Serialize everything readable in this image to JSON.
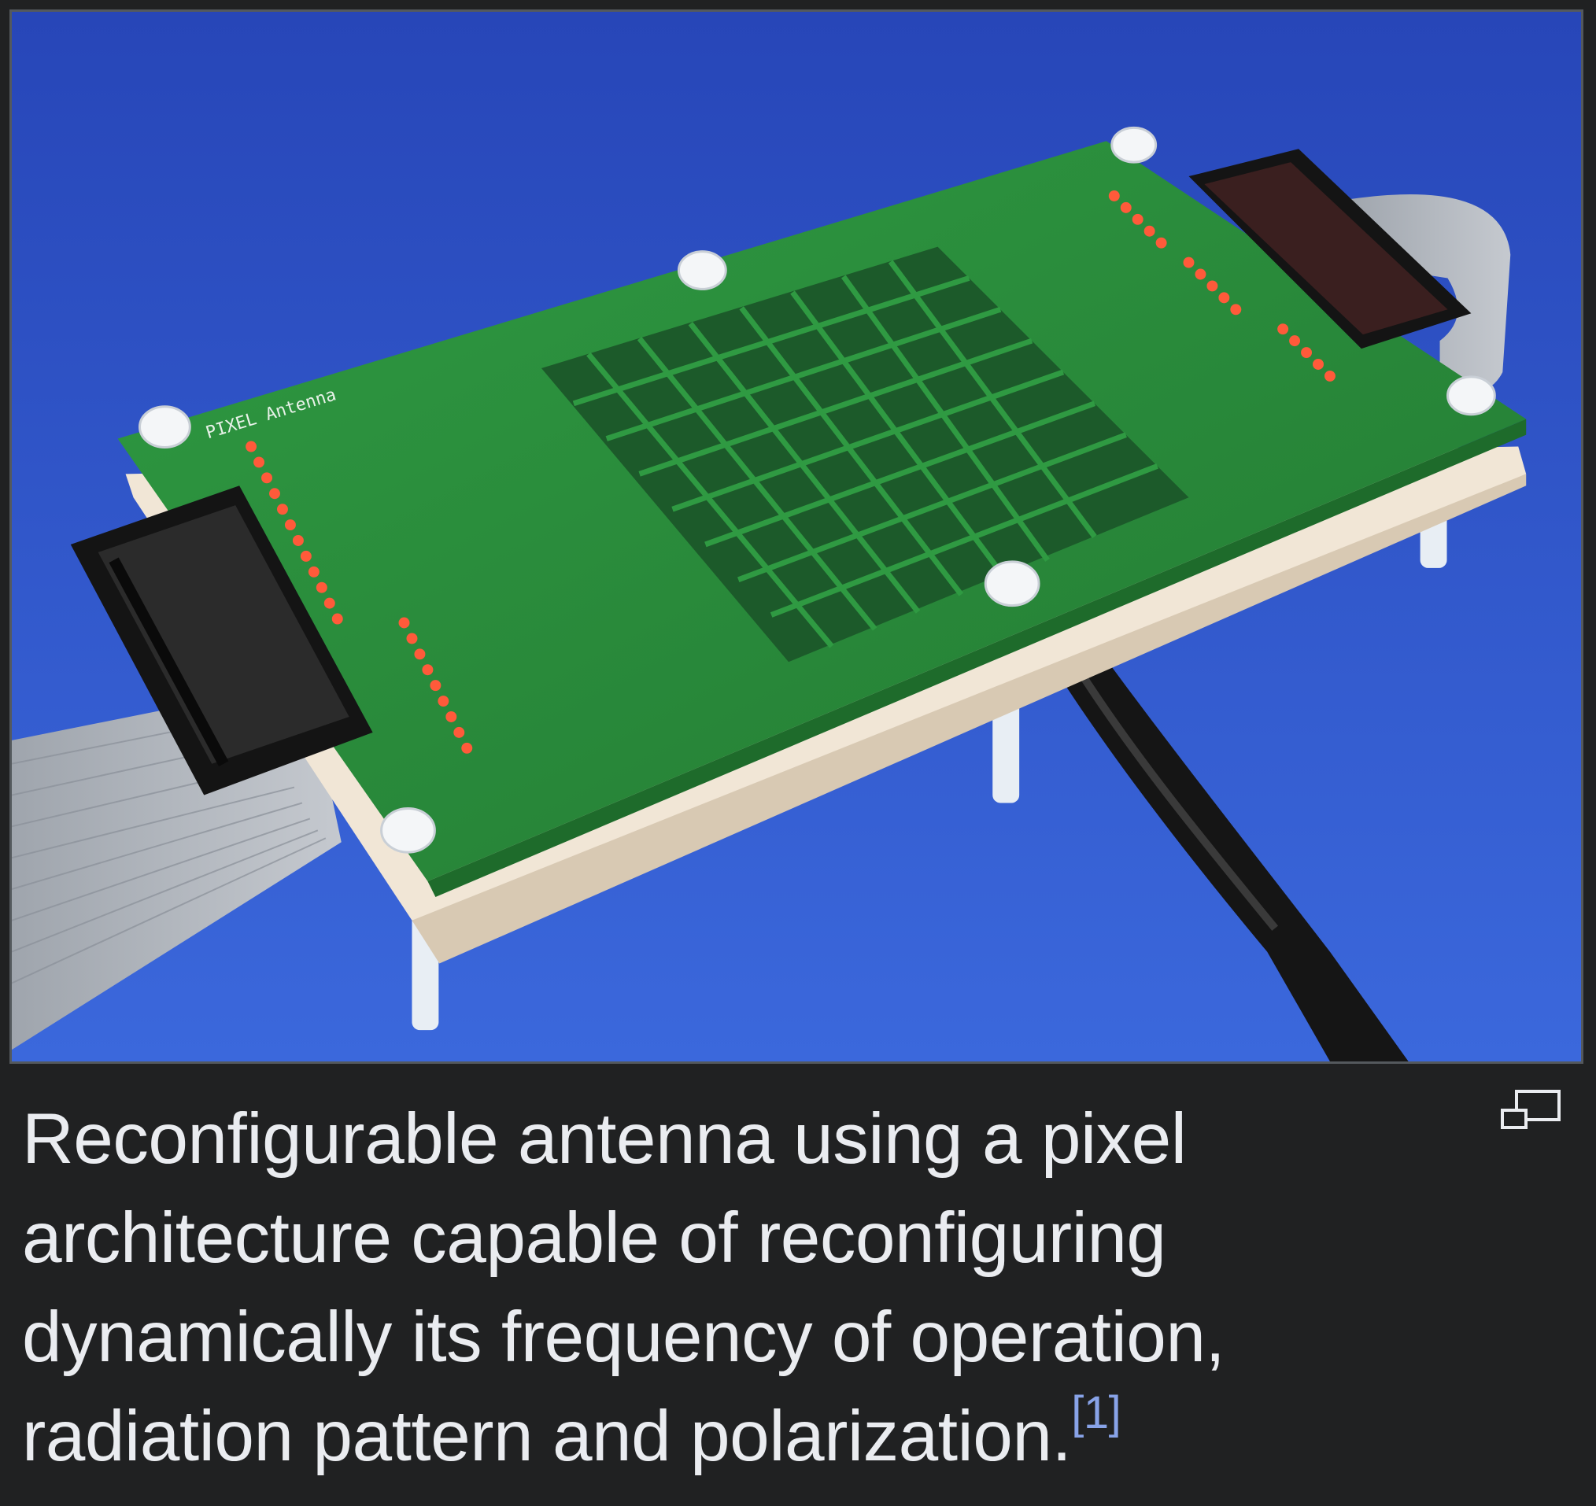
{
  "figure": {
    "caption": "Reconfigurable antenna using a pixel architecture capable of reconfiguring dynamically its frequency of operation, radiation pattern and polarization.",
    "reference": "[1]",
    "board_silkscreen": "PIXEL Antenna",
    "magnify_icon": "enlarge-icon",
    "colors": {
      "background": "#202122",
      "caption_text": "#eaecf0",
      "reference_link": "#88a3e8",
      "photo_backdrop": "#2f57c9",
      "pcb_green": "#2a8a3a",
      "pixel_patch": "#1c5a2a",
      "led_red": "#ff5a3a"
    }
  }
}
